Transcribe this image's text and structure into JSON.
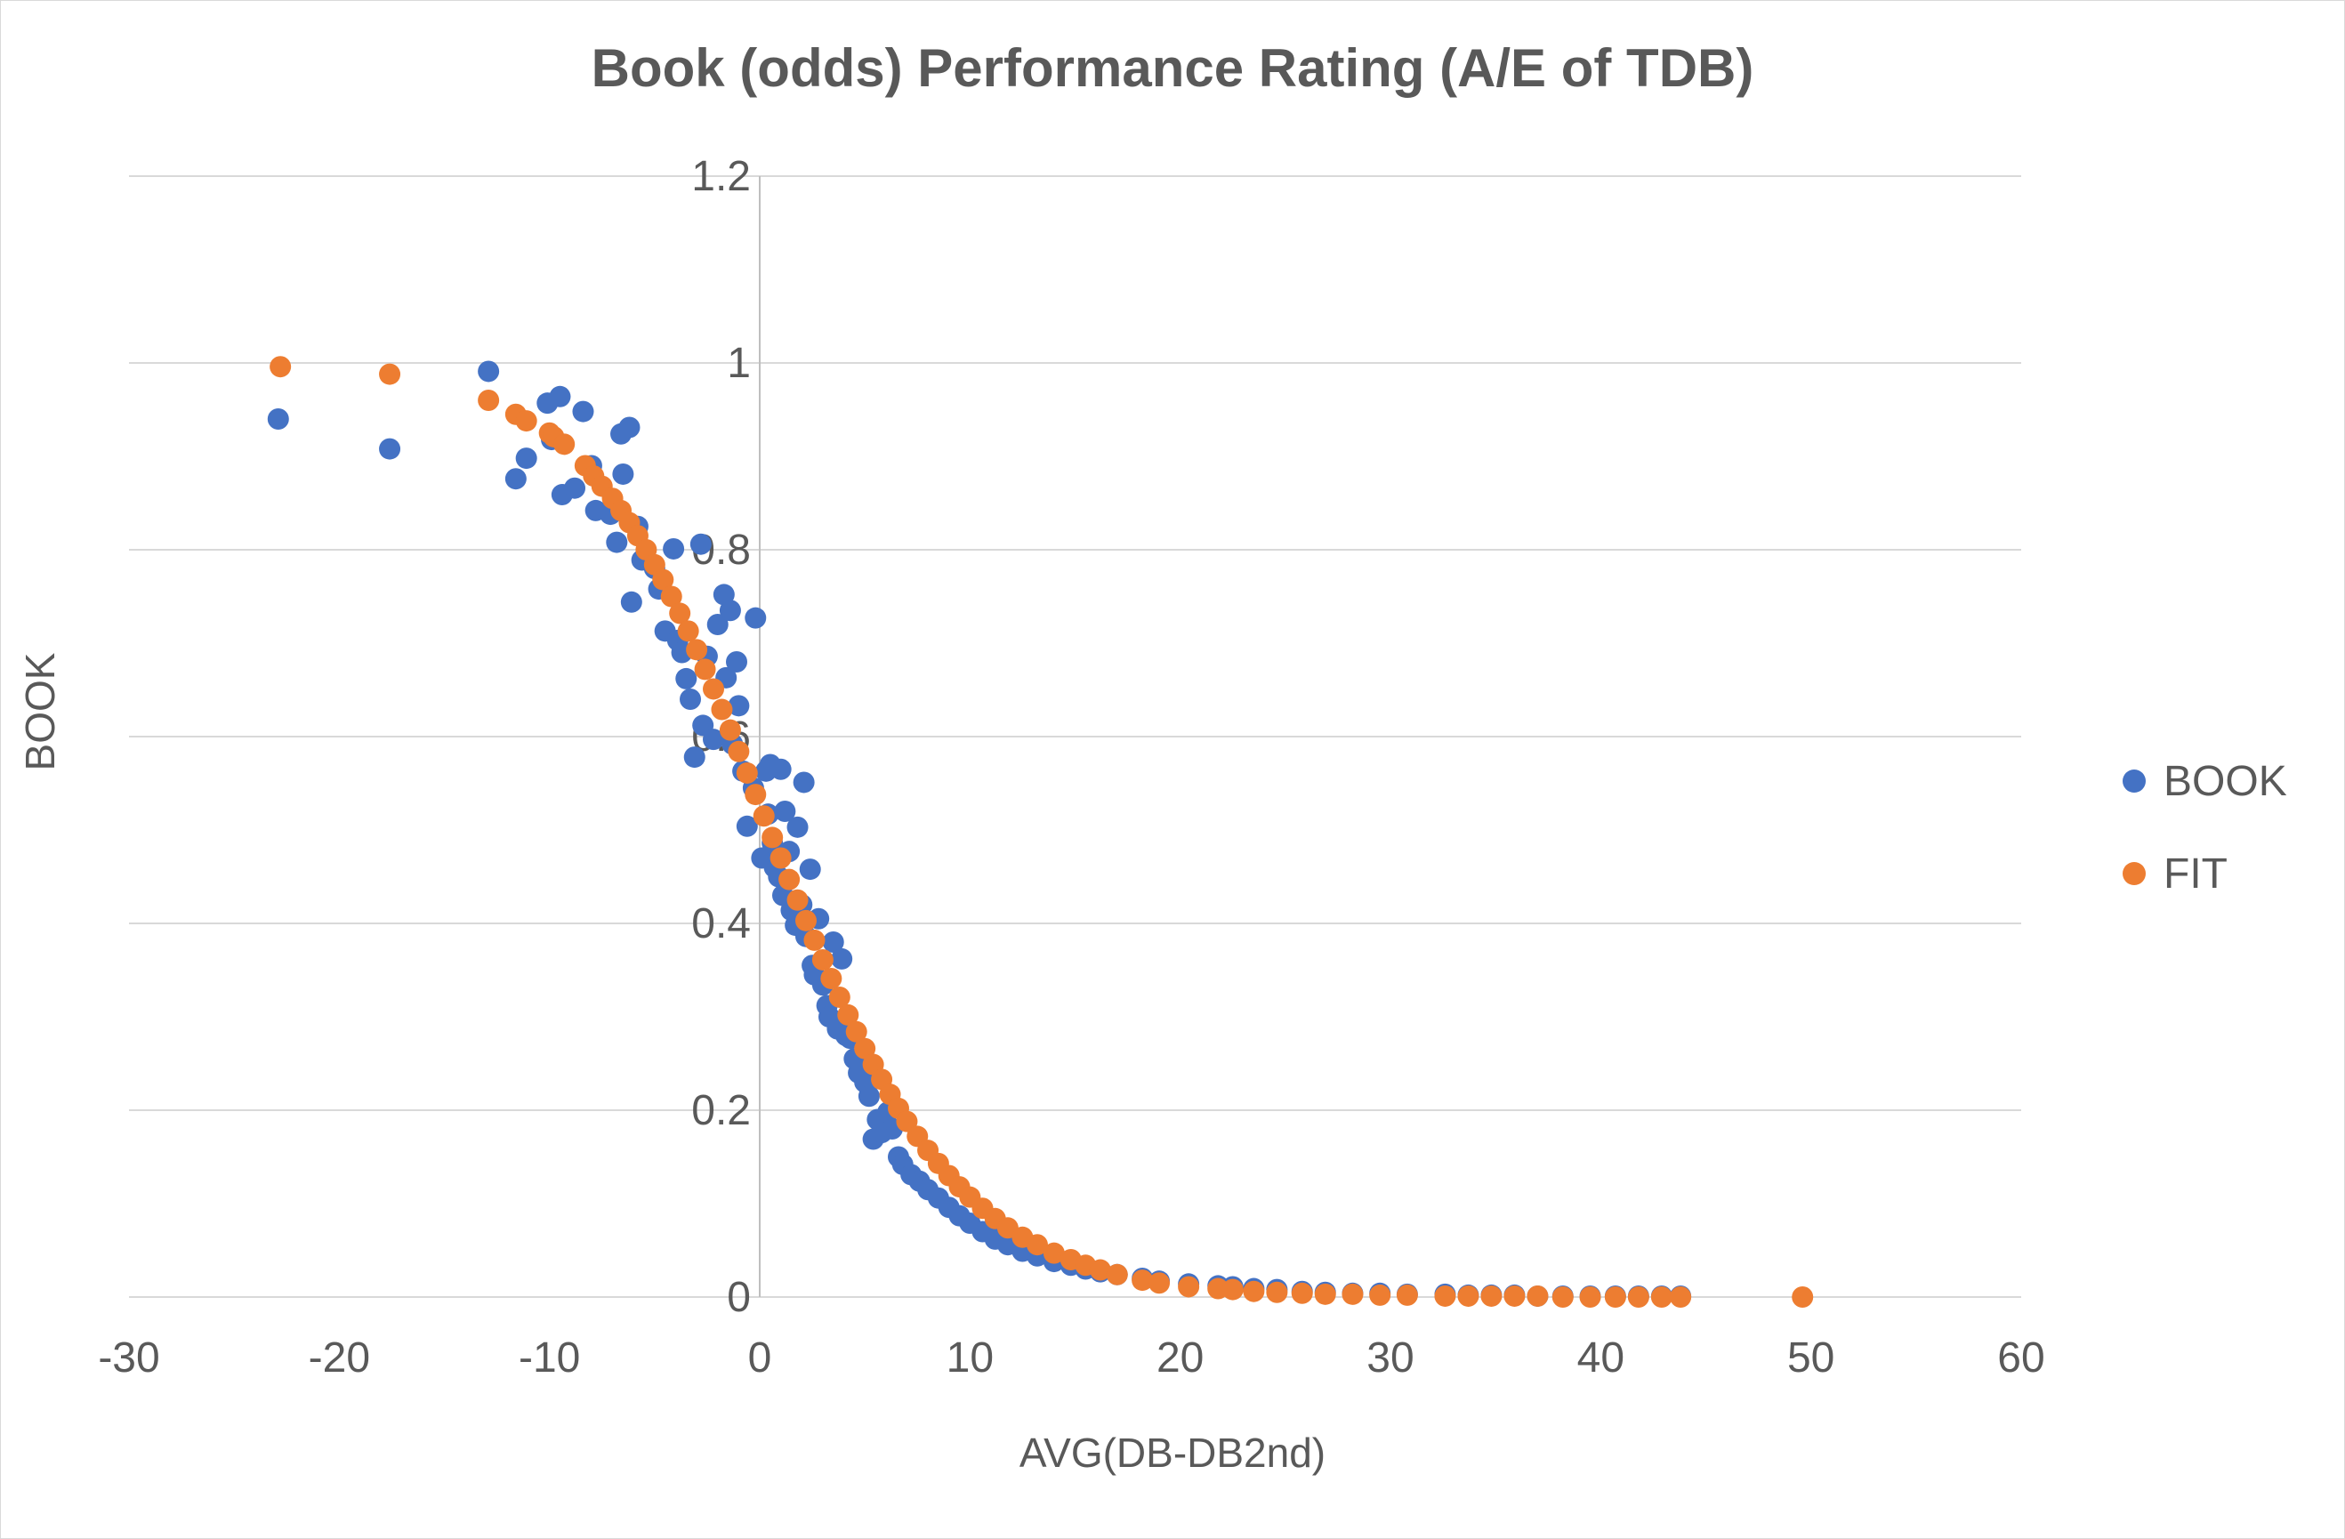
{
  "chart_data": {
    "type": "scatter",
    "title": "Book (odds) Performance Rating (A/E of TDB)",
    "xlabel": "AVG(DB-DB2nd)",
    "ylabel": "BOOK",
    "xlim": [
      -30,
      60
    ],
    "ylim": [
      0,
      1.2
    ],
    "xticks": [
      "-30",
      "-20",
      "-10",
      "0",
      "10",
      "20",
      "30",
      "40",
      "50",
      "60"
    ],
    "yticks": [
      "0",
      "0.2",
      "0.4",
      "0.6",
      "0.8",
      "1",
      "1.2"
    ],
    "grid": "horizontal",
    "legend_position": "right",
    "series": [
      {
        "name": "BOOK",
        "color": "#4472c4",
        "points": [
          [
            -22.9,
            0.94
          ],
          [
            -17.6,
            0.908
          ],
          [
            -12.9,
            0.991
          ],
          [
            -11.6,
            0.876
          ],
          [
            -11.1,
            0.898
          ],
          [
            -10.1,
            0.957
          ],
          [
            -9.9,
            0.918
          ],
          [
            -9.5,
            0.964
          ],
          [
            -9.4,
            0.859
          ],
          [
            -8.8,
            0.866
          ],
          [
            -8.4,
            0.948
          ],
          [
            -8.0,
            0.89
          ],
          [
            -7.8,
            0.842
          ],
          [
            -7.1,
            0.838
          ],
          [
            -6.8,
            0.808
          ],
          [
            -6.6,
            0.924
          ],
          [
            -6.5,
            0.881
          ],
          [
            -6.2,
            0.931
          ],
          [
            -6.1,
            0.744
          ],
          [
            -5.8,
            0.825
          ],
          [
            -5.6,
            0.789
          ],
          [
            -5.0,
            0.78
          ],
          [
            -4.8,
            0.758
          ],
          [
            -4.5,
            0.713
          ],
          [
            -4.1,
            0.801
          ],
          [
            -3.9,
            0.703
          ],
          [
            -3.7,
            0.69
          ],
          [
            -3.5,
            0.662
          ],
          [
            -3.3,
            0.64
          ],
          [
            -3.1,
            0.578
          ],
          [
            -2.8,
            0.806
          ],
          [
            -2.7,
            0.612
          ],
          [
            -2.5,
            0.686
          ],
          [
            -2.2,
            0.597
          ],
          [
            -2.0,
            0.72
          ],
          [
            -1.7,
            0.752
          ],
          [
            -1.6,
            0.663
          ],
          [
            -1.4,
            0.735
          ],
          [
            -1.3,
            0.592
          ],
          [
            -1.1,
            0.68
          ],
          [
            -1.0,
            0.633
          ],
          [
            -0.8,
            0.563
          ],
          [
            -0.6,
            0.504
          ],
          [
            -0.3,
            0.545
          ],
          [
            -0.2,
            0.727
          ],
          [
            0.1,
            0.47
          ],
          [
            0.3,
            0.563
          ],
          [
            0.4,
            0.517
          ],
          [
            0.5,
            0.57
          ],
          [
            0.6,
            0.486
          ],
          [
            0.7,
            0.46
          ],
          [
            0.9,
            0.45
          ],
          [
            1.0,
            0.565
          ],
          [
            1.1,
            0.43
          ],
          [
            1.2,
            0.52
          ],
          [
            1.4,
            0.477
          ],
          [
            1.5,
            0.414
          ],
          [
            1.7,
            0.398
          ],
          [
            1.8,
            0.503
          ],
          [
            2.0,
            0.42
          ],
          [
            2.1,
            0.551
          ],
          [
            2.2,
            0.386
          ],
          [
            2.4,
            0.458
          ],
          [
            2.5,
            0.355
          ],
          [
            2.6,
            0.345
          ],
          [
            2.8,
            0.405
          ],
          [
            3.0,
            0.334
          ],
          [
            3.2,
            0.312
          ],
          [
            3.3,
            0.3
          ],
          [
            3.5,
            0.38
          ],
          [
            3.7,
            0.287
          ],
          [
            3.9,
            0.362
          ],
          [
            4.1,
            0.28
          ],
          [
            4.3,
            0.277
          ],
          [
            4.5,
            0.255
          ],
          [
            4.7,
            0.24
          ],
          [
            5.0,
            0.23
          ],
          [
            5.2,
            0.215
          ],
          [
            5.4,
            0.169
          ],
          [
            5.6,
            0.19
          ],
          [
            5.8,
            0.176
          ],
          [
            6.1,
            0.198
          ],
          [
            6.3,
            0.18
          ],
          [
            6.6,
            0.15
          ],
          [
            6.8,
            0.142
          ],
          [
            7.2,
            0.131
          ],
          [
            7.6,
            0.124
          ],
          [
            8.0,
            0.115
          ],
          [
            8.5,
            0.106
          ],
          [
            9.0,
            0.096
          ],
          [
            9.5,
            0.087
          ],
          [
            10.0,
            0.079
          ],
          [
            10.6,
            0.07
          ],
          [
            11.2,
            0.062
          ],
          [
            11.8,
            0.056
          ],
          [
            12.5,
            0.049
          ],
          [
            13.2,
            0.044
          ],
          [
            14.0,
            0.038
          ],
          [
            14.8,
            0.034
          ],
          [
            15.5,
            0.03
          ],
          [
            16.2,
            0.027
          ],
          [
            17.0,
            0.024
          ],
          [
            18.2,
            0.02
          ],
          [
            19.0,
            0.017
          ],
          [
            20.4,
            0.014
          ],
          [
            21.8,
            0.012
          ],
          [
            22.5,
            0.011
          ],
          [
            23.5,
            0.009
          ],
          [
            24.6,
            0.008
          ],
          [
            25.8,
            0.006
          ],
          [
            26.9,
            0.005
          ],
          [
            28.2,
            0.004
          ],
          [
            29.5,
            0.004
          ],
          [
            30.8,
            0.003
          ],
          [
            32.6,
            0.003
          ],
          [
            33.7,
            0.002
          ],
          [
            34.8,
            0.002
          ],
          [
            35.9,
            0.002
          ],
          [
            37.0,
            0.001
          ],
          [
            38.2,
            0.001
          ],
          [
            39.5,
            0.001
          ],
          [
            40.7,
            0.001
          ],
          [
            41.8,
            0.001
          ],
          [
            42.9,
            0.001
          ],
          [
            43.8,
            0.001
          ]
        ]
      },
      {
        "name": "FIT",
        "color": "#ed7d31",
        "points": [
          [
            -22.8,
            0.996
          ],
          [
            -17.6,
            0.988
          ],
          [
            -12.9,
            0.96
          ],
          [
            -11.6,
            0.945
          ],
          [
            -11.1,
            0.938
          ],
          [
            -10.0,
            0.925
          ],
          [
            -9.8,
            0.921
          ],
          [
            -9.3,
            0.913
          ],
          [
            -8.3,
            0.89
          ],
          [
            -7.9,
            0.879
          ],
          [
            -7.5,
            0.868
          ],
          [
            -7.0,
            0.855
          ],
          [
            -6.6,
            0.842
          ],
          [
            -6.2,
            0.829
          ],
          [
            -5.8,
            0.815
          ],
          [
            -5.4,
            0.8
          ],
          [
            -5.0,
            0.784
          ],
          [
            -4.6,
            0.768
          ],
          [
            -4.2,
            0.75
          ],
          [
            -3.8,
            0.732
          ],
          [
            -3.4,
            0.713
          ],
          [
            -3.0,
            0.693
          ],
          [
            -2.6,
            0.672
          ],
          [
            -2.2,
            0.651
          ],
          [
            -1.8,
            0.629
          ],
          [
            -1.4,
            0.607
          ],
          [
            -1.0,
            0.584
          ],
          [
            -0.6,
            0.561
          ],
          [
            -0.2,
            0.538
          ],
          [
            0.2,
            0.515
          ],
          [
            0.6,
            0.492
          ],
          [
            1.0,
            0.47
          ],
          [
            1.4,
            0.447
          ],
          [
            1.8,
            0.425
          ],
          [
            2.2,
            0.403
          ],
          [
            2.6,
            0.382
          ],
          [
            3.0,
            0.361
          ],
          [
            3.4,
            0.341
          ],
          [
            3.8,
            0.321
          ],
          [
            4.2,
            0.302
          ],
          [
            4.6,
            0.284
          ],
          [
            5.0,
            0.266
          ],
          [
            5.4,
            0.249
          ],
          [
            5.8,
            0.233
          ],
          [
            6.2,
            0.217
          ],
          [
            6.6,
            0.202
          ],
          [
            7.0,
            0.188
          ],
          [
            7.5,
            0.172
          ],
          [
            8.0,
            0.157
          ],
          [
            8.5,
            0.143
          ],
          [
            9.0,
            0.13
          ],
          [
            9.5,
            0.118
          ],
          [
            10.0,
            0.107
          ],
          [
            10.6,
            0.095
          ],
          [
            11.2,
            0.084
          ],
          [
            11.8,
            0.074
          ],
          [
            12.5,
            0.064
          ],
          [
            13.2,
            0.056
          ],
          [
            14.0,
            0.047
          ],
          [
            14.8,
            0.04
          ],
          [
            15.5,
            0.034
          ],
          [
            16.2,
            0.029
          ],
          [
            17.0,
            0.024
          ],
          [
            18.2,
            0.018
          ],
          [
            19.0,
            0.015
          ],
          [
            20.4,
            0.011
          ],
          [
            21.8,
            0.009
          ],
          [
            22.5,
            0.008
          ],
          [
            23.5,
            0.006
          ],
          [
            24.6,
            0.005
          ],
          [
            25.8,
            0.004
          ],
          [
            26.9,
            0.003
          ],
          [
            28.2,
            0.003
          ],
          [
            29.5,
            0.002
          ],
          [
            30.8,
            0.002
          ],
          [
            32.6,
            0.001
          ],
          [
            33.7,
            0.001
          ],
          [
            34.8,
            0.001
          ],
          [
            35.9,
            0.001
          ],
          [
            37.0,
            0.001
          ],
          [
            38.2,
            0.0
          ],
          [
            39.5,
            0.0
          ],
          [
            40.7,
            0.0
          ],
          [
            41.8,
            0.0
          ],
          [
            42.9,
            0.0
          ],
          [
            43.8,
            0.0
          ],
          [
            49.6,
            0.0
          ]
        ]
      }
    ]
  }
}
